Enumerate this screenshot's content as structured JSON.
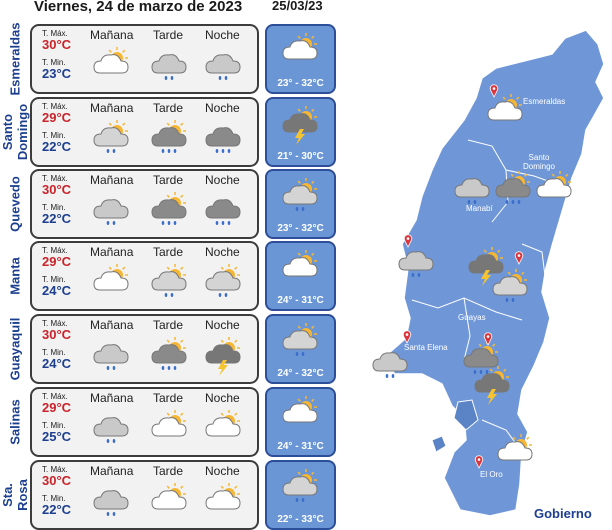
{
  "header": {
    "date_title": "Viernes, 24 de marzo de 2023",
    "forecast_date": "25/03/23"
  },
  "labels": {
    "max": "T. Máx.",
    "min": "T. Min.",
    "morning": "Mañana",
    "afternoon": "Tarde",
    "night": "Noche"
  },
  "cities": [
    {
      "name": "Esmeraldas",
      "max": "30°C",
      "min": "23°C",
      "morning": "partly-cloudy-icon",
      "afternoon": "cloud-rain-icon",
      "night": "cloud-rain-icon",
      "forecast": "partly-cloudy-icon",
      "range": "23° - 32°C"
    },
    {
      "name": "Santo Domingo",
      "max": "29°C",
      "min": "22°C",
      "morning": "sun-cloud-rain-icon",
      "afternoon": "storm-cloud-icon",
      "night": "heavy-rain-icon",
      "forecast": "thunderstorm-icon",
      "range": "21° - 30°C"
    },
    {
      "name": "Quevedo",
      "max": "30°C",
      "min": "22°C",
      "morning": "cloud-rain-icon",
      "afternoon": "storm-cloud-icon",
      "night": "heavy-rain-icon",
      "forecast": "sun-cloud-rain-icon",
      "range": "23° - 32°C"
    },
    {
      "name": "Manta",
      "max": "29°C",
      "min": "24°C",
      "morning": "partly-cloudy-icon",
      "afternoon": "sun-cloud-rain-icon",
      "night": "sun-cloud-rain-icon",
      "forecast": "partly-cloudy-icon",
      "range": "24° - 31°C"
    },
    {
      "name": "Guayaquil",
      "max": "30°C",
      "min": "24°C",
      "morning": "cloud-rain-icon",
      "afternoon": "storm-cloud-icon",
      "night": "thunderstorm-icon",
      "forecast": "sun-cloud-rain-icon",
      "range": "24° - 32°C"
    },
    {
      "name": "Salinas",
      "max": "29°C",
      "min": "25°C",
      "morning": "cloud-rain-icon",
      "afternoon": "partly-cloudy-icon",
      "night": "partly-cloudy-icon",
      "forecast": "partly-cloudy-icon",
      "range": "24° - 31°C"
    },
    {
      "name": "Sta. Rosa",
      "max": "30°C",
      "min": "22°C",
      "morning": "cloud-rain-icon",
      "afternoon": "partly-cloudy-icon",
      "night": "partly-cloudy-icon",
      "forecast": "sun-cloud-rain-icon",
      "range": "22° - 33°C"
    }
  ],
  "map": {
    "labels": [
      "Esmeraldas",
      "Santo Domingo",
      "Manabí",
      "Guayas",
      "Santa Elena",
      "El Oro"
    ],
    "logo": "Gobierno"
  },
  "colors": {
    "map_fill": "#6f97d8",
    "panel_fill": "#6b96d6",
    "max_temp": "#c9242b",
    "min_temp": "#1d3f8f",
    "sun": "#f7b733"
  }
}
